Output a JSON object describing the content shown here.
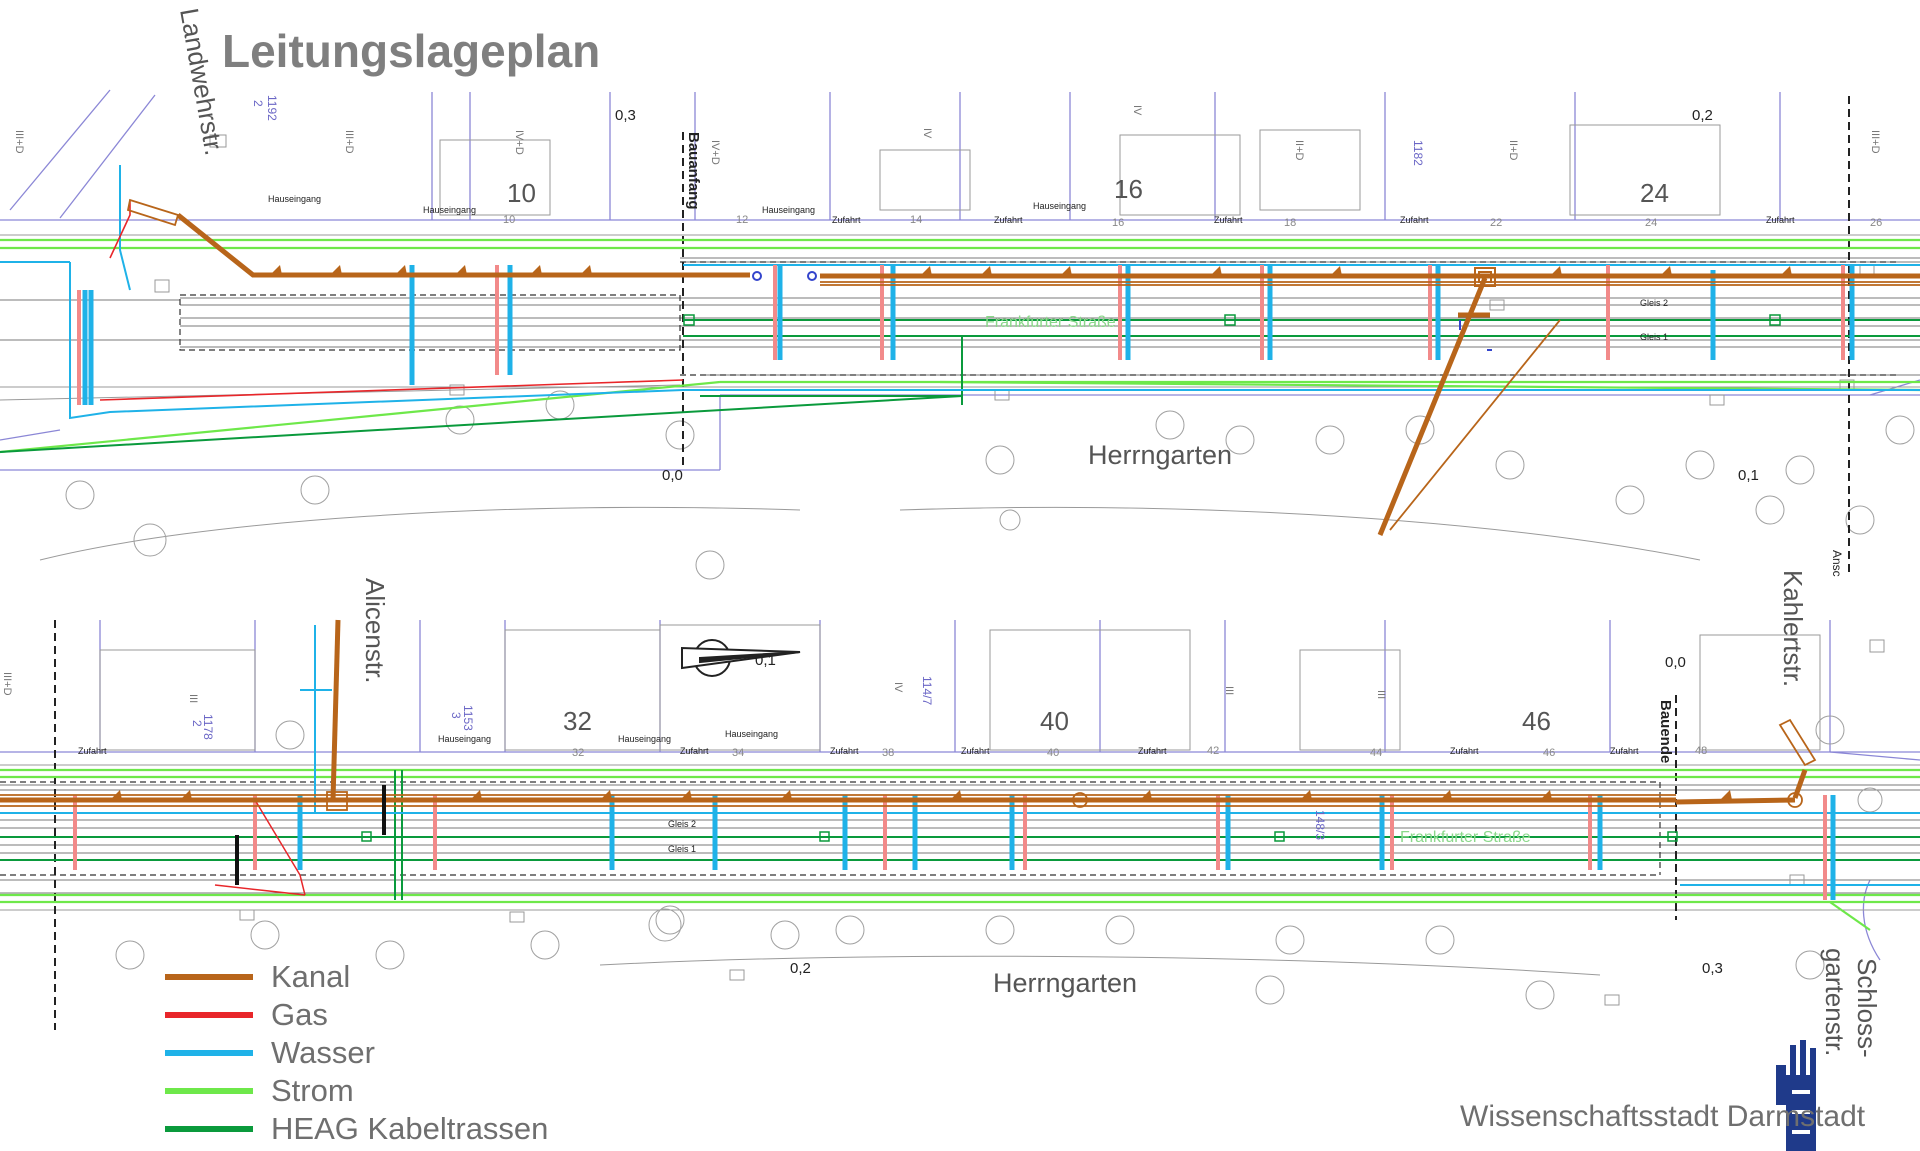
{
  "title": "Leitungslageplan",
  "legend": [
    {
      "label": "Kanal",
      "color": "#b8651a"
    },
    {
      "label": "Gas",
      "color": "#e8262a"
    },
    {
      "label": "Wasser",
      "color": "#1fb2e8"
    },
    {
      "label": "Strom",
      "color": "#6ee84a"
    },
    {
      "label": "HEAG Kabeltrassen",
      "color": "#0a9a3c"
    }
  ],
  "colors": {
    "kanal": "#b8651a",
    "gas": "#e8262a",
    "gas_light": "#f28a8a",
    "wasser": "#1fb2e8",
    "strom": "#6ee84a",
    "heag": "#0a9a3c",
    "parcel": "#8b87d6",
    "base": "#8f8f8f",
    "track": "#555555"
  },
  "streets": {
    "landwehr": "Landwehrstr.",
    "alicen": "Alicenstr.",
    "kahlert": "Kahlertstr.",
    "schloss_line1": "Schloss-",
    "schloss_line2": "gartenstr.",
    "herrngarten": "Herrngarten",
    "frankfurter": "Frankfurter Straße"
  },
  "markers": {
    "bauanfang": "Bauanfang",
    "bauende": "Bauende",
    "hauseingang": "Hauseingang",
    "zufahrt": "Zufahrt",
    "gleis1": "Gleis 1",
    "gleis2": "Gleis 2",
    "ansc": "Ansc"
  },
  "house_numbers_top": [
    "10",
    "16",
    "24"
  ],
  "house_numbers_bottom": [
    "32",
    "40",
    "46"
  ],
  "small_numbers_top": [
    "10",
    "12",
    "14",
    "16",
    "18",
    "22",
    "24",
    "26"
  ],
  "small_numbers_bottom": [
    "32",
    "34",
    "38",
    "40",
    "42",
    "44",
    "46",
    "48"
  ],
  "elevations_top": [
    "0,3",
    "0,2",
    "0,0",
    "0,1"
  ],
  "elevations_bottom": [
    "0,0",
    "0,2",
    "0,3",
    "0,1"
  ],
  "floor_labels_top": [
    "III+D",
    "III+D",
    "IV+D",
    "IV+D",
    "IV",
    "IV",
    "II+D",
    "II+D",
    "III+D"
  ],
  "floor_labels_bottom": [
    "III+D",
    "III",
    "IV",
    "III",
    "III"
  ],
  "parcel_ids_top": [
    "1192",
    "2",
    "1182"
  ],
  "parcel_ids_bottom": [
    "1178",
    "2",
    "1153",
    "3",
    "114/7",
    "148/3"
  ],
  "city": "Wissenschaftsstadt Darmstadt"
}
